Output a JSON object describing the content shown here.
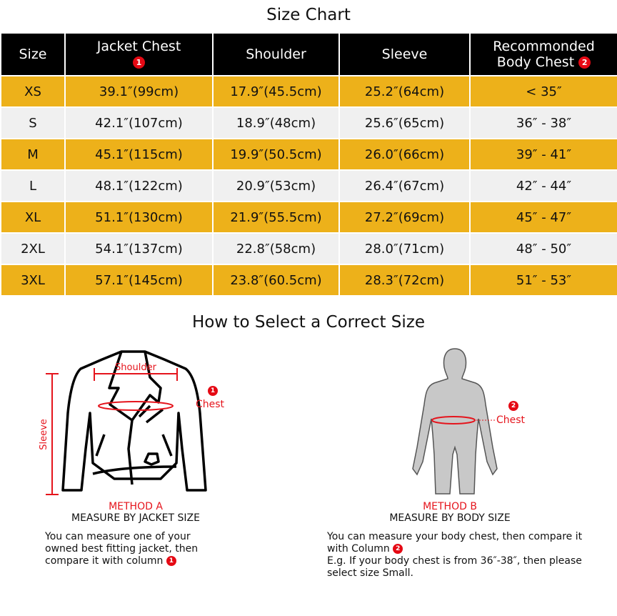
{
  "title": "Size Chart",
  "headers": [
    "Size",
    "Jacket Chest",
    "Shoulder",
    "Sleeve",
    "Recommonded",
    "Body  Chest"
  ],
  "badges": {
    "one": "1",
    "two": "2"
  },
  "rows": [
    [
      "XS",
      "39.1″(99cm)",
      "17.9″(45.5cm)",
      "25.2″(64cm)",
      "< 35″"
    ],
    [
      "S",
      "42.1″(107cm)",
      "18.9″(48cm)",
      "25.6″(65cm)",
      "36″ - 38″"
    ],
    [
      "M",
      "45.1″(115cm)",
      "19.9″(50.5cm)",
      "26.0″(66cm)",
      "39″ - 41″"
    ],
    [
      "L",
      "48.1″(122cm)",
      "20.9″(53cm)",
      "26.4″(67cm)",
      "42″ - 44″"
    ],
    [
      "XL",
      "51.1″(130cm)",
      "21.9″(55.5cm)",
      "27.2″(69cm)",
      "45″ - 47″"
    ],
    [
      "2XL",
      "54.1″(137cm)",
      "22.8″(58cm)",
      "28.0″(71cm)",
      "48″ - 50″"
    ],
    [
      "3XL",
      "57.1″(145cm)",
      "23.8″(60.5cm)",
      "28.3″(72cm)",
      "51″ - 53″"
    ]
  ],
  "howto": {
    "title": "How to Select a Correct Size",
    "a": {
      "shoulder": "Shoulder",
      "chest": "Chest",
      "sleeve": "Sleeve",
      "method": "METHOD A",
      "sub": "MEASURE BY JACKET SIZE",
      "desc": "You can measure one of your owned best fitting jacket, then compare it with column"
    },
    "b": {
      "chest": "Chest",
      "method": "METHOD B",
      "sub": "MEASURE BY BODY SIZE",
      "desc1": "You can measure your body chest, then compare it with Column",
      "desc2": "E.g. If your body chest is from 36″-38″, then please select size Small."
    }
  },
  "colors": {
    "header": "#000000",
    "yellow": "#EDB11A",
    "gray": "#F0F0F0",
    "accent": "#e5141c"
  }
}
